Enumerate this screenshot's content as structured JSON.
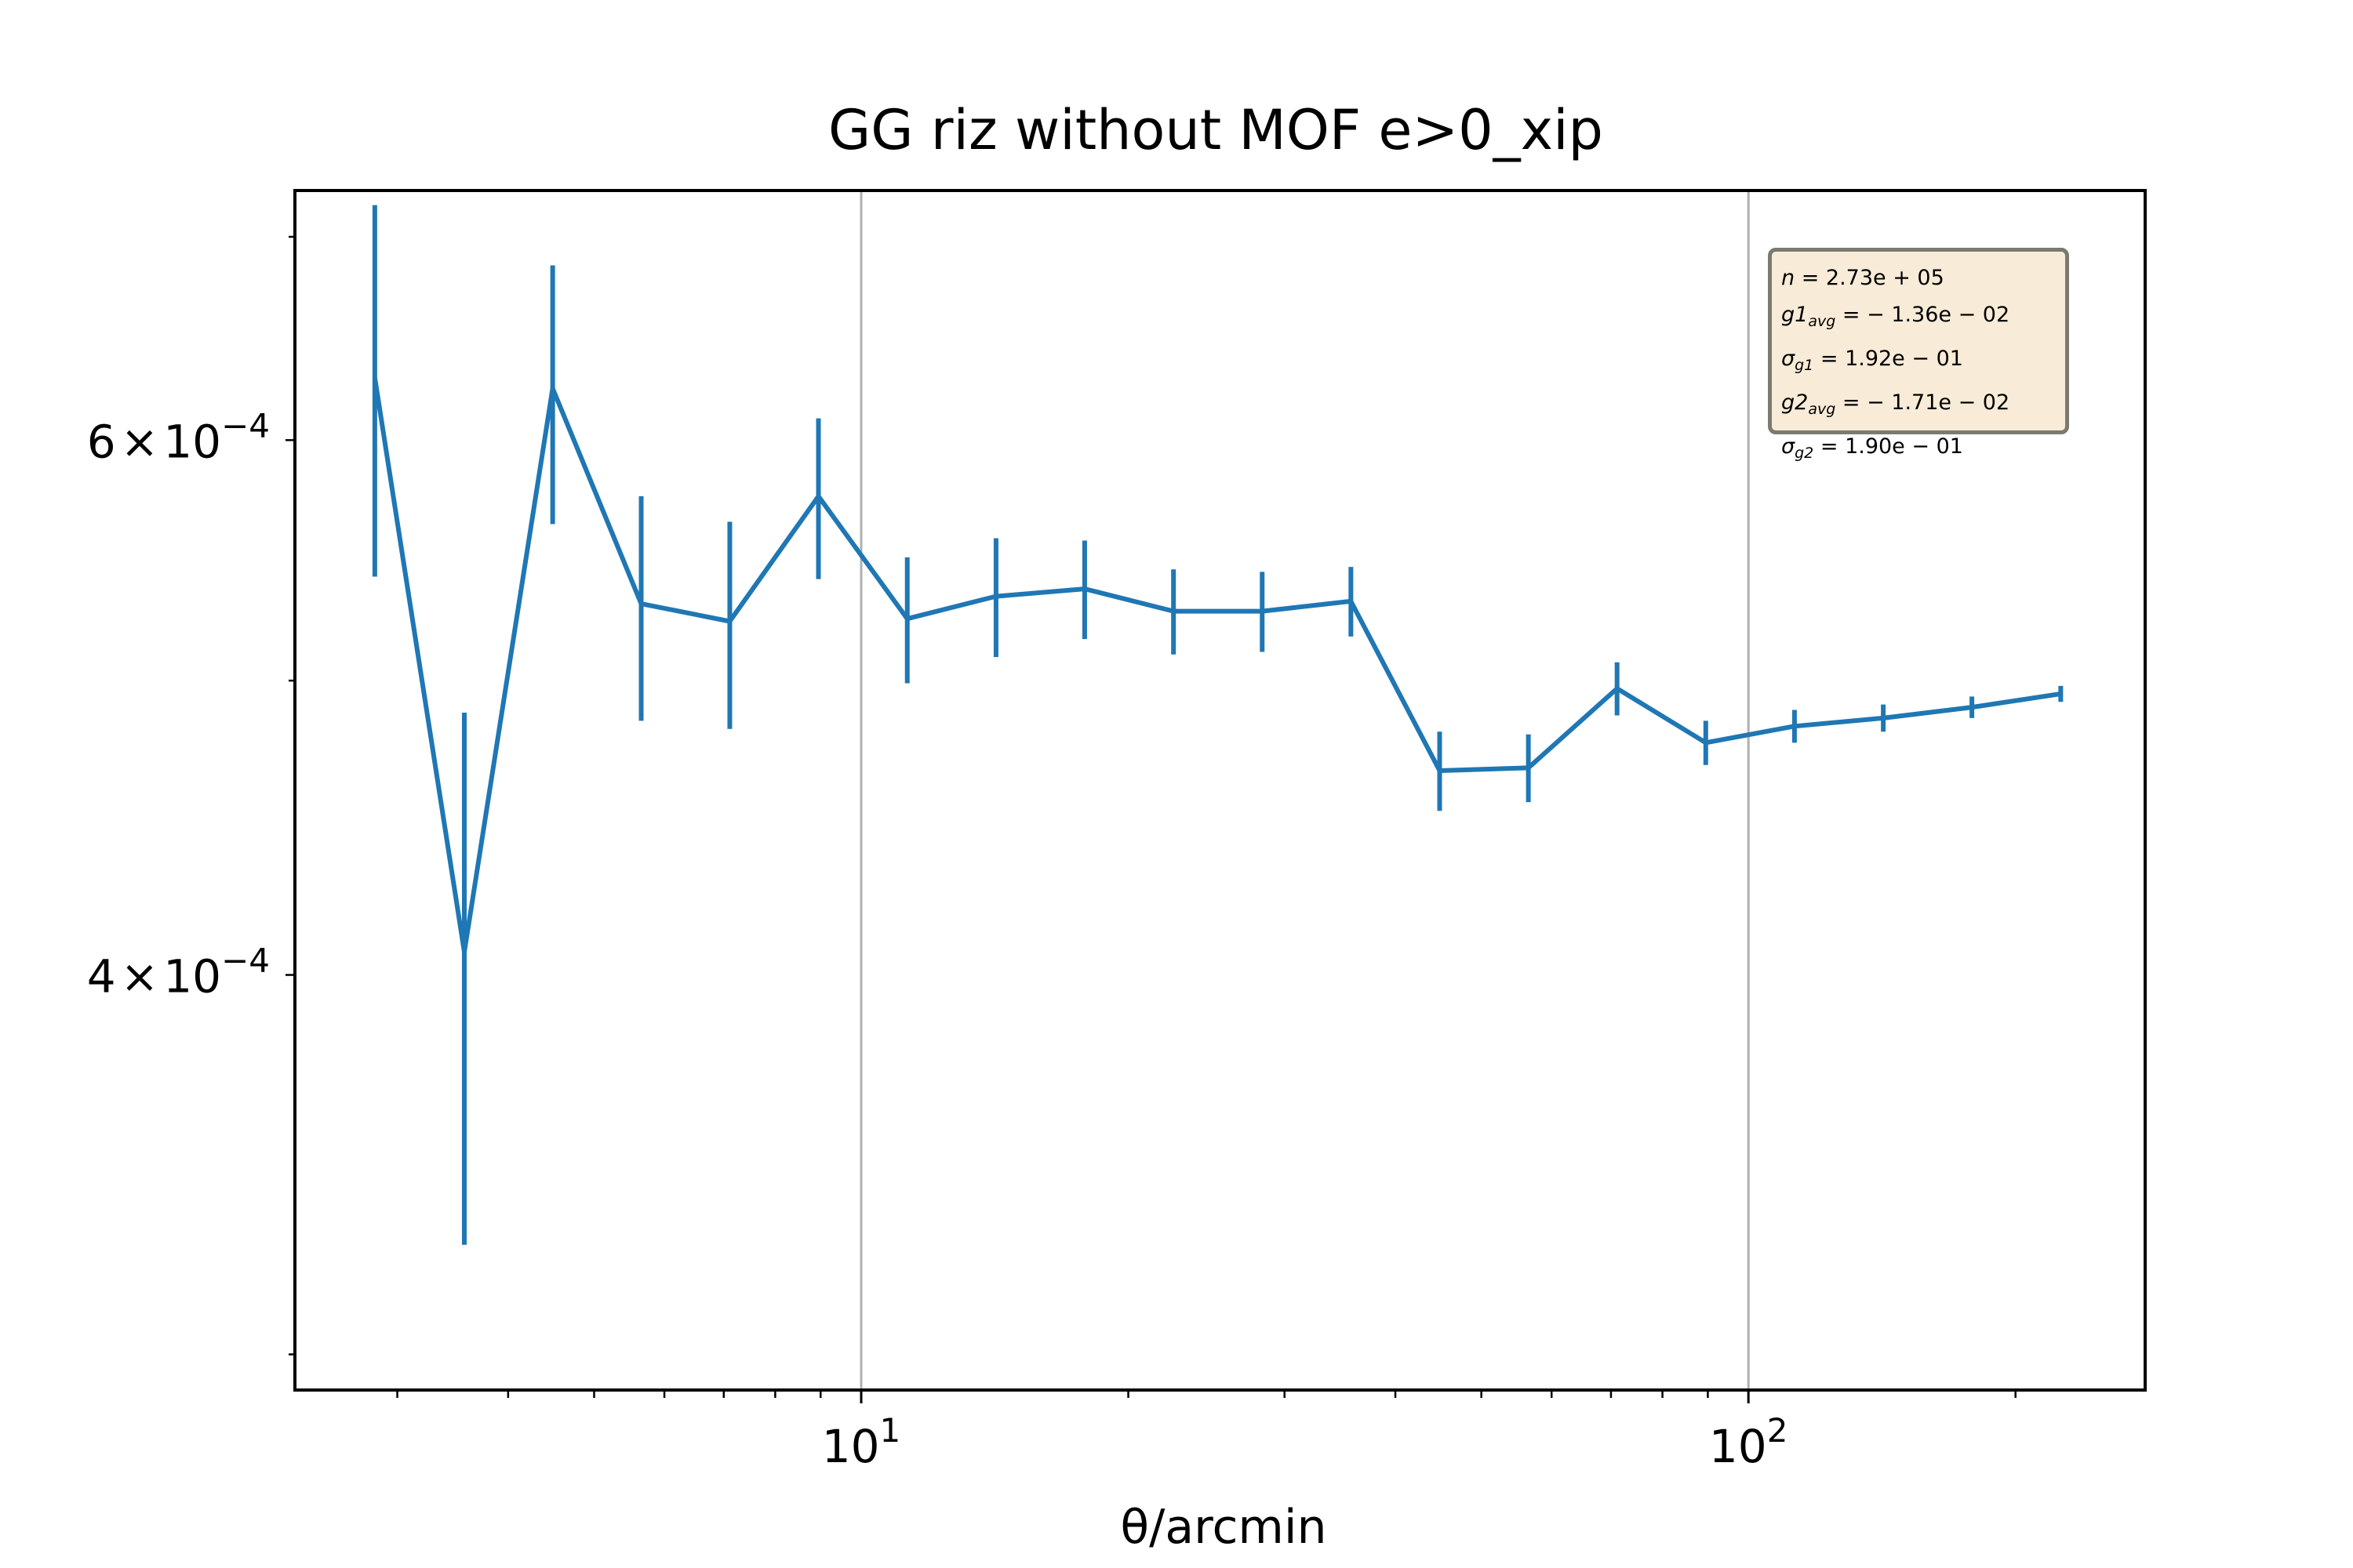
{
  "chart_data": {
    "type": "line",
    "title": "GG riz without MOF e>0_xip",
    "xlabel": "θ/arcmin",
    "ylabel": "",
    "xscale": "log",
    "yscale": "log",
    "xlim": [
      2.3,
      280
    ],
    "ylim": [
      0.000292,
      0.000725
    ],
    "grid": "x-major only",
    "error_bars": true,
    "color": "#1f77b4",
    "x_tick_labels": [
      {
        "base": "10",
        "exp": "1"
      },
      {
        "base": "10",
        "exp": "2"
      }
    ],
    "y_tick_labels": [
      {
        "mant": "6",
        "times": "×",
        "base": "10",
        "exp": "−4"
      },
      {
        "mant": "4",
        "times": "×",
        "base": "10",
        "exp": "−4"
      }
    ],
    "series": [
      {
        "x": [
          2.83,
          3.57,
          4.49,
          5.65,
          7.11,
          8.95,
          11.27,
          14.19,
          17.86,
          22.49,
          28.31,
          35.64,
          44.87,
          56.49,
          71.11,
          89.52,
          112.7,
          141.9,
          178.6,
          224.9
        ],
        "y": [
          0.000629,
          0.000407,
          0.000624,
          0.00053,
          0.000523,
          0.000575,
          0.000524,
          0.000533,
          0.000536,
          0.000527,
          0.000527,
          0.000531,
          0.000467,
          0.000468,
          0.000497,
          0.000477,
          0.000483,
          0.000486,
          0.00049,
          0.000495
        ],
        "yerr": [
          8.8e-05,
          8.1e-05,
          6.1e-05,
          4.5e-05,
          4.1e-05,
          3.5e-05,
          2.5e-05,
          2.4e-05,
          2e-05,
          1.7e-05,
          1.6e-05,
          1.4e-05,
          1.4e-05,
          1.2e-05,
          1e-05,
          8e-06,
          6e-06,
          5e-06,
          4e-06,
          3e-06
        ]
      }
    ]
  },
  "info_box": {
    "n_label": "n",
    "n_value": " = 2.73e + 05",
    "g1_label": "g1",
    "g1_sub": "avg",
    "g1_value": " = − 1.36e − 02",
    "sg1_label": "σ",
    "sg1_sub": "g1",
    "sg1_value": " = 1.92e − 01",
    "g2_label": "g2",
    "g2_sub": "avg",
    "g2_value": " = − 1.71e − 02",
    "sg2_label": "σ",
    "sg2_sub": "g2",
    "sg2_value": " = 1.90e − 01"
  }
}
